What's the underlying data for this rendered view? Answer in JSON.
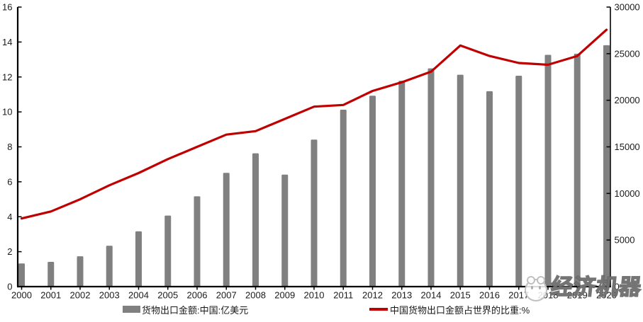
{
  "chart_data": {
    "type": "bar",
    "title": "",
    "xlabel": "",
    "ylabel_left": "中国货物出口金额占世界的比重:%",
    "ylabel_right": "货物出口金额:中国:亿美元",
    "grid": false,
    "legend_position": "bottom",
    "categories": [
      "2000",
      "2001",
      "2002",
      "2003",
      "2004",
      "2005",
      "2006",
      "2007",
      "2008",
      "2009",
      "2010",
      "2011",
      "2012",
      "2013",
      "2014",
      "2015",
      "2016",
      "2017",
      "2018",
      "2019",
      "2020"
    ],
    "series": [
      {
        "name": "货物出口金额:中国:亿美元",
        "type": "bar",
        "axis": "right",
        "color": "#808080",
        "values": [
          2492,
          2661,
          3256,
          4382,
          5933,
          7620,
          9690,
          12205,
          14307,
          12016,
          15778,
          18984,
          20487,
          22090,
          23422,
          22735,
          20976,
          22633,
          24874,
          24995,
          25906
        ]
      },
      {
        "name": "中国货物出口金额占世界的比重:%",
        "type": "line",
        "axis": "left",
        "color": "#C00000",
        "values": [
          3.9,
          4.3,
          5.0,
          5.8,
          6.5,
          7.3,
          8.0,
          8.7,
          8.9,
          9.6,
          10.3,
          10.4,
          11.2,
          11.7,
          12.3,
          13.8,
          13.2,
          12.8,
          12.7,
          13.2,
          14.7
        ]
      }
    ],
    "left_axis": {
      "min": 0,
      "max": 16,
      "step": 2,
      "labels": [
        "0",
        "2",
        "4",
        "6",
        "8",
        "10",
        "12",
        "14",
        "16"
      ]
    },
    "right_axis": {
      "min": 0,
      "max": 30000,
      "step": 5000,
      "labels": [
        "0",
        "5000",
        "10000",
        "15000",
        "20000",
        "25000",
        "30000"
      ]
    }
  },
  "legend": {
    "bar_label": "货物出口金额:中国:亿美元",
    "line_label": "中国货物出口金额占世界的比重:%"
  },
  "watermark": {
    "text": "经济机器"
  },
  "colors": {
    "bar": "#808080",
    "line": "#C00000",
    "axis": "#000000",
    "tick_label": "#1a1a1a",
    "background": "#ffffff"
  }
}
